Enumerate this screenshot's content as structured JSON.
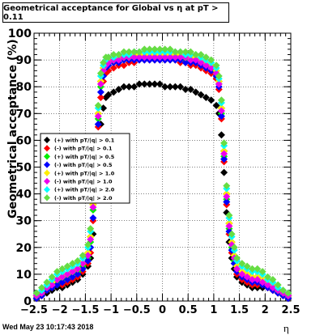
{
  "title": "Geometrical acceptance for Global vs  η at pT > 0.11",
  "footer_date": "Wed May 23 10:17:43 2018",
  "colors": {
    "black": "#000000",
    "red": "#ff0000",
    "green": "#00ee00",
    "blue": "#0000ff",
    "yellow": "#ffee00",
    "magenta": "#ee00ee",
    "cyan": "#00ffff",
    "lightgreen": "#66dd44"
  },
  "chart_data": {
    "type": "scatter",
    "title": "Geometrical acceptance for Global vs  η at pT > 0.11",
    "xlabel": "η",
    "ylabel": "Geometrical acceptance (%)",
    "xlim": [
      -2.5,
      2.5
    ],
    "ylim": [
      0,
      100
    ],
    "x_ticks": [
      "−2.5",
      "−2",
      "−1.5",
      "−1",
      "−0.5",
      "0",
      "0.5",
      "1",
      "1.5",
      "2",
      "2.5"
    ],
    "y_ticks": [
      "0",
      "10",
      "20",
      "30",
      "40",
      "50",
      "60",
      "70",
      "80",
      "90",
      "100"
    ],
    "grid": true,
    "legend_position": "left",
    "x": [
      -2.45,
      -2.35,
      -2.25,
      -2.15,
      -2.05,
      -1.95,
      -1.85,
      -1.75,
      -1.65,
      -1.55,
      -1.45,
      -1.4,
      -1.35,
      -1.3,
      -1.25,
      -1.2,
      -1.15,
      -1.1,
      -1.05,
      -0.95,
      -0.85,
      -0.75,
      -0.65,
      -0.55,
      -0.45,
      -0.35,
      -0.25,
      -0.15,
      -0.05,
      0.05,
      0.15,
      0.25,
      0.35,
      0.45,
      0.55,
      0.65,
      0.75,
      0.85,
      0.95,
      1.05,
      1.1,
      1.15,
      1.2,
      1.25,
      1.3,
      1.35,
      1.4,
      1.45,
      1.55,
      1.65,
      1.75,
      1.85,
      1.95,
      2.05,
      2.15,
      2.25,
      2.35,
      2.45
    ],
    "series": [
      {
        "name": "(+) with pT/|q| > 0.1",
        "color": "#000000",
        "values": [
          1,
          2,
          3,
          4,
          5,
          5,
          6,
          7,
          8,
          10,
          13,
          16,
          25,
          40,
          58,
          66,
          72,
          76,
          77,
          78,
          79,
          80,
          80,
          80,
          81,
          81,
          81,
          81,
          81,
          80,
          80,
          80,
          80,
          79,
          79,
          78,
          77,
          76,
          75,
          73,
          70,
          62,
          48,
          33,
          22,
          16,
          12,
          9,
          7,
          6,
          5,
          5,
          5,
          5,
          4,
          3,
          2,
          1
        ]
      },
      {
        "name": "(-) with pT/|q| > 0.1",
        "color": "#ff0000",
        "values": [
          1,
          2,
          4,
          5,
          6,
          6,
          7,
          8,
          9,
          11,
          14,
          18,
          30,
          48,
          65,
          76,
          82,
          85,
          86,
          87,
          88,
          88,
          89,
          89,
          90,
          90,
          90,
          90,
          90,
          90,
          90,
          90,
          89,
          89,
          88,
          88,
          87,
          86,
          85,
          83,
          79,
          68,
          52,
          36,
          25,
          18,
          14,
          10,
          8,
          7,
          6,
          6,
          6,
          5,
          4,
          3,
          2,
          1
        ]
      },
      {
        "name": "(+) with pT/|q| > 0.5",
        "color": "#00ee00",
        "values": [
          2,
          3,
          5,
          6,
          7,
          8,
          9,
          10,
          11,
          13,
          16,
          22,
          34,
          50,
          68,
          80,
          86,
          88,
          89,
          90,
          90,
          90,
          91,
          91,
          91,
          91,
          91,
          91,
          91,
          91,
          91,
          91,
          91,
          90,
          90,
          90,
          89,
          88,
          87,
          85,
          81,
          70,
          54,
          38,
          27,
          20,
          15,
          12,
          10,
          9,
          8,
          8,
          7,
          6,
          5,
          4,
          3,
          2
        ]
      },
      {
        "name": "(-) with pT/|q| > 0.5",
        "color": "#0000ff",
        "values": [
          1,
          2,
          4,
          5,
          6,
          7,
          8,
          9,
          10,
          12,
          15,
          20,
          31,
          47,
          66,
          78,
          84,
          87,
          88,
          89,
          89,
          90,
          90,
          90,
          90,
          90,
          90,
          90,
          90,
          90,
          90,
          90,
          90,
          89,
          89,
          89,
          88,
          87,
          86,
          84,
          80,
          69,
          53,
          37,
          26,
          19,
          14,
          11,
          9,
          8,
          7,
          7,
          6,
          5,
          4,
          3,
          2,
          1
        ]
      },
      {
        "name": "(+) with pT/|q| > 1.0",
        "color": "#ffee00",
        "values": [
          2,
          3,
          5,
          7,
          8,
          9,
          10,
          11,
          12,
          14,
          18,
          24,
          36,
          52,
          70,
          82,
          87,
          89,
          90,
          90,
          91,
          91,
          91,
          92,
          92,
          92,
          92,
          92,
          92,
          92,
          92,
          92,
          92,
          91,
          91,
          91,
          90,
          89,
          88,
          86,
          82,
          72,
          56,
          40,
          29,
          22,
          17,
          13,
          11,
          10,
          9,
          9,
          8,
          7,
          6,
          4,
          3,
          2
        ]
      },
      {
        "name": "(-) with pT/|q| > 1.0",
        "color": "#ee00ee",
        "values": [
          2,
          3,
          5,
          6,
          8,
          9,
          10,
          11,
          12,
          14,
          17,
          23,
          35,
          51,
          69,
          81,
          86,
          88,
          89,
          90,
          90,
          91,
          91,
          91,
          91,
          91,
          91,
          91,
          91,
          91,
          91,
          91,
          91,
          91,
          90,
          90,
          89,
          88,
          87,
          85,
          81,
          71,
          55,
          39,
          28,
          21,
          16,
          12,
          10,
          9,
          8,
          8,
          7,
          6,
          5,
          4,
          3,
          2
        ]
      },
      {
        "name": "(+) with pT/|q| > 2.0",
        "color": "#00ffff",
        "values": [
          3,
          4,
          6,
          8,
          10,
          11,
          12,
          13,
          14,
          16,
          20,
          26,
          38,
          54,
          72,
          84,
          88,
          90,
          91,
          91,
          92,
          92,
          92,
          93,
          93,
          93,
          93,
          93,
          93,
          93,
          93,
          93,
          93,
          92,
          92,
          92,
          91,
          90,
          89,
          87,
          83,
          74,
          58,
          42,
          31,
          24,
          19,
          15,
          13,
          12,
          11,
          11,
          10,
          8,
          7,
          5,
          4,
          3
        ]
      },
      {
        "name": "(-) with pT/|q| > 2.0",
        "color": "#66dd44",
        "values": [
          3,
          5,
          7,
          9,
          11,
          12,
          13,
          14,
          15,
          17,
          21,
          27,
          39,
          55,
          73,
          85,
          89,
          91,
          91,
          92,
          92,
          93,
          93,
          93,
          93,
          94,
          94,
          94,
          94,
          94,
          94,
          93,
          93,
          93,
          93,
          92,
          92,
          91,
          90,
          88,
          84,
          75,
          59,
          43,
          32,
          25,
          20,
          16,
          14,
          13,
          12,
          12,
          11,
          9,
          8,
          6,
          4,
          3
        ]
      }
    ]
  }
}
